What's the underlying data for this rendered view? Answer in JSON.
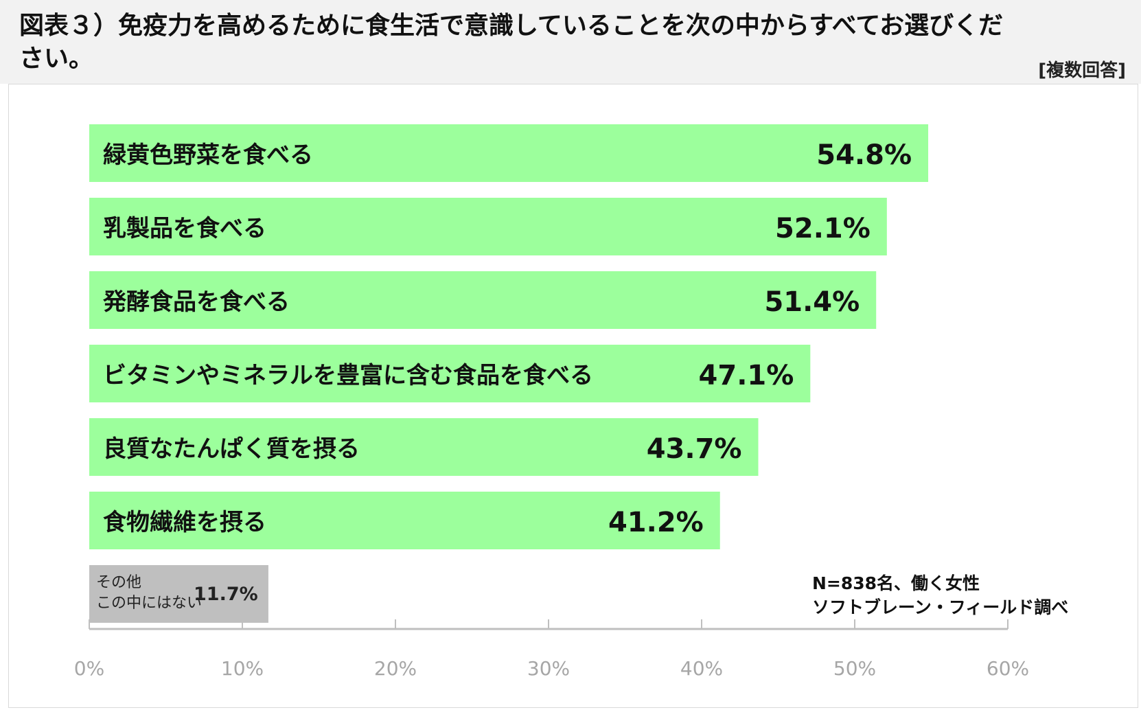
{
  "header": {
    "title": "図表３）免疫力を高めるために食生活で意識していることを次の中からすべてお選びください。",
    "note": "[複数回答]"
  },
  "chart_data": {
    "type": "bar",
    "orientation": "horizontal",
    "categories": [
      "緑黄色野菜を食べる",
      "乳製品を食べる",
      "発酵食品を食べる",
      "ビタミンやミネラルを豊富に含む食品を食べる",
      "良質なたんぱく質を摂る",
      "食物繊維を摂る",
      "その他\nこの中にはない"
    ],
    "values": [
      54.8,
      52.1,
      51.4,
      47.1,
      43.7,
      41.2,
      11.7
    ],
    "value_labels": [
      "54.8%",
      "52.1%",
      "51.4%",
      "47.1%",
      "43.7%",
      "41.2%",
      "11.7%"
    ],
    "xlim": [
      0,
      60
    ],
    "ticks": [
      0,
      10,
      20,
      30,
      40,
      50,
      60
    ],
    "tick_labels": [
      "0%",
      "10%",
      "20%",
      "30%",
      "40%",
      "50%",
      "60%"
    ],
    "grid": false,
    "colors": {
      "main": "#9cff9c",
      "other": "#bfbfbf",
      "axis": "#bfbfbf",
      "tick_text": "#a6a6a6"
    }
  },
  "source": {
    "line1": "N=838名、働く女性",
    "line2": "ソフトブレーン・フィールド調べ"
  }
}
